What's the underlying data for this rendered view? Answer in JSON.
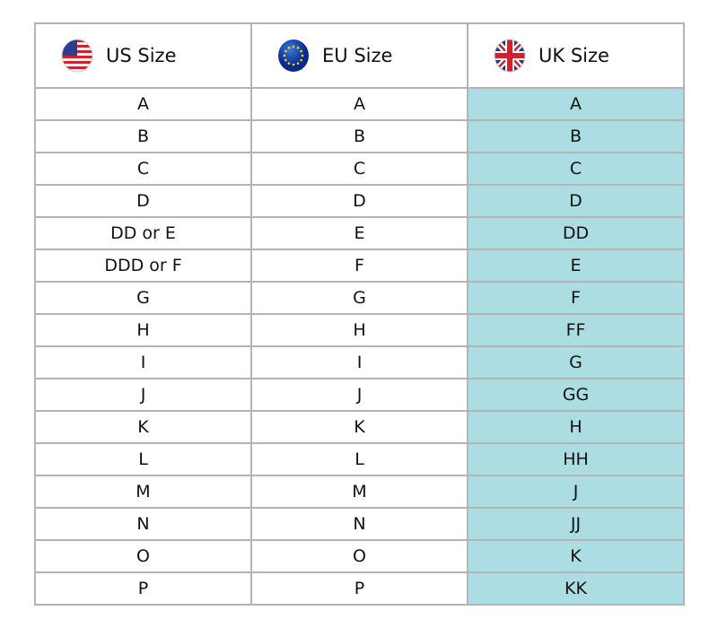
{
  "headers": [
    {
      "label": "US Size",
      "icon": "us-flag-icon"
    },
    {
      "label": "EU Size",
      "icon": "eu-flag-icon"
    },
    {
      "label": "UK Size",
      "icon": "uk-flag-icon"
    }
  ],
  "highlight_color": "#acdde3",
  "rows": [
    [
      "A",
      "A",
      "A"
    ],
    [
      "B",
      "B",
      "B"
    ],
    [
      "C",
      "C",
      "C"
    ],
    [
      "D",
      "D",
      "D"
    ],
    [
      "DD or E",
      "E",
      "DD"
    ],
    [
      "DDD or F",
      "F",
      "E"
    ],
    [
      "G",
      "G",
      "F"
    ],
    [
      "H",
      "H",
      "FF"
    ],
    [
      "I",
      "I",
      "G"
    ],
    [
      "J",
      "J",
      "GG"
    ],
    [
      "K",
      "K",
      "H"
    ],
    [
      "L",
      "L",
      "HH"
    ],
    [
      "M",
      "M",
      "J"
    ],
    [
      "N",
      "N",
      "JJ"
    ],
    [
      "O",
      "O",
      "K"
    ],
    [
      "P",
      "P",
      "KK"
    ]
  ]
}
